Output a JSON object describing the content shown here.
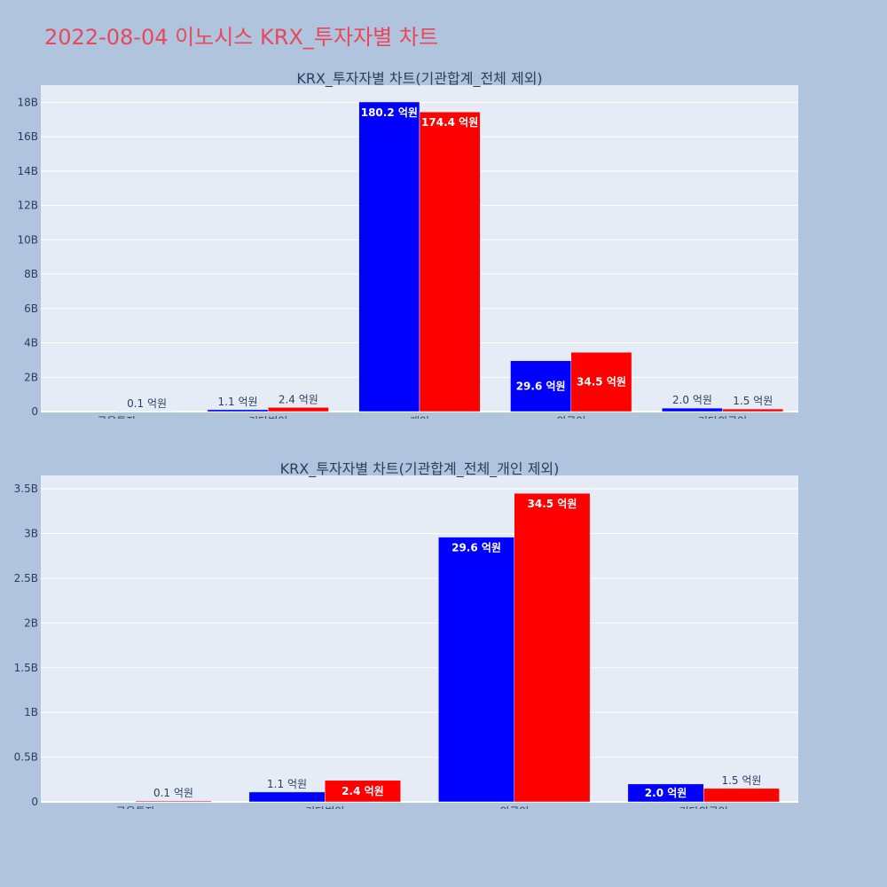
{
  "page_title": "2022-08-04 이노시스 KRX_투자자별 차트",
  "colors": {
    "background": "#b0c4de",
    "plot_bg": "#e5ecf6",
    "grid": "#ffffff",
    "title": "#e8485c",
    "text": "#2a3f5f",
    "series_a": "#0000ff",
    "series_b": "#ff0000"
  },
  "chart_data": [
    {
      "type": "bar",
      "title": "KRX_투자자별 차트(기관합계_전체 제외)",
      "categories": [
        "금융투자",
        "기타법인",
        "개인",
        "외국인",
        "기타외국인"
      ],
      "ylim": [
        0,
        19000000000
      ],
      "yticks": [
        0,
        2000000000,
        4000000000,
        6000000000,
        8000000000,
        10000000000,
        12000000000,
        14000000000,
        16000000000,
        18000000000
      ],
      "ytick_labels": [
        "0",
        "2B",
        "4B",
        "6B",
        "8B",
        "10B",
        "12B",
        "14B",
        "16B",
        "18B"
      ],
      "grid": true,
      "series": [
        {
          "color": "#0000ff",
          "values": [
            0,
            110000000,
            18020000000,
            2960000000,
            200000000
          ],
          "labels": [
            "",
            "1.1 억원",
            "180.2 억원",
            "29.6 억원",
            "2.0 억원"
          ]
        },
        {
          "color": "#ff0000",
          "values": [
            10000000,
            240000000,
            17440000000,
            3450000000,
            150000000
          ],
          "labels": [
            "0.1 억원",
            "2.4 억원",
            "174.4 억원",
            "34.5 억원",
            "1.5 억원"
          ]
        }
      ]
    },
    {
      "type": "bar",
      "title": "KRX_투자자별 차트(기관합계_전체_개인 제외)",
      "categories": [
        "금융투자",
        "기타법인",
        "외국인",
        "기타외국인"
      ],
      "ylim": [
        0,
        3650000000
      ],
      "yticks": [
        0,
        500000000,
        1000000000,
        1500000000,
        2000000000,
        2500000000,
        3000000000,
        3500000000
      ],
      "ytick_labels": [
        "0",
        "0.5B",
        "1B",
        "1.5B",
        "2B",
        "2.5B",
        "3B",
        "3.5B"
      ],
      "grid": true,
      "series": [
        {
          "color": "#0000ff",
          "values": [
            0,
            110000000,
            2960000000,
            200000000
          ],
          "labels": [
            "",
            "1.1 억원",
            "29.6 억원",
            "2.0 억원"
          ]
        },
        {
          "color": "#ff0000",
          "values": [
            10000000,
            240000000,
            3450000000,
            150000000
          ],
          "labels": [
            "0.1 억원",
            "2.4 억원",
            "34.5 억원",
            "1.5 억원"
          ]
        }
      ]
    }
  ]
}
